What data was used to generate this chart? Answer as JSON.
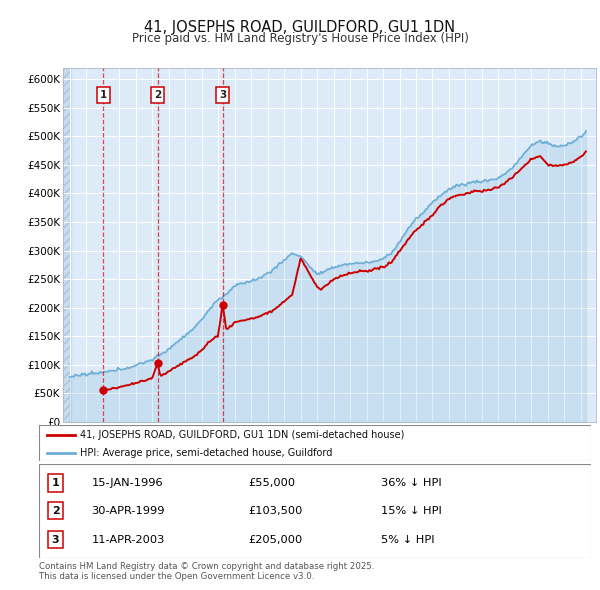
{
  "title": "41, JOSEPHS ROAD, GUILDFORD, GU1 1DN",
  "subtitle": "Price paid vs. HM Land Registry's House Price Index (HPI)",
  "ylim": [
    0,
    620000
  ],
  "yticks": [
    0,
    50000,
    100000,
    150000,
    200000,
    250000,
    300000,
    350000,
    400000,
    450000,
    500000,
    550000,
    600000
  ],
  "ytick_labels": [
    "£0",
    "£50K",
    "£100K",
    "£150K",
    "£200K",
    "£250K",
    "£300K",
    "£350K",
    "£400K",
    "£450K",
    "£500K",
    "£550K",
    "£600K"
  ],
  "bg_color": "#ddeaf8",
  "grid_color": "#ffffff",
  "sale_prices": [
    55000,
    103500,
    205000
  ],
  "sale_years": [
    1996.04,
    1999.33,
    2003.28
  ],
  "sale_labels": [
    "1",
    "2",
    "3"
  ],
  "sale_date_strs": [
    "15-JAN-1996",
    "30-APR-1999",
    "11-APR-2003"
  ],
  "sale_price_strs": [
    "£55,000",
    "£103,500",
    "£205,000"
  ],
  "sale_hpi_strs": [
    "36% ↓ HPI",
    "15% ↓ HPI",
    "5% ↓ HPI"
  ],
  "hpi_line_color": "#6baed6",
  "sale_line_color": "#cc0000",
  "legend_label_red": "41, JOSEPHS ROAD, GUILDFORD, GU1 1DN (semi-detached house)",
  "legend_label_blue": "HPI: Average price, semi-detached house, Guildford",
  "footnote": "Contains HM Land Registry data © Crown copyright and database right 2025.\nThis data is licensed under the Open Government Licence v3.0."
}
